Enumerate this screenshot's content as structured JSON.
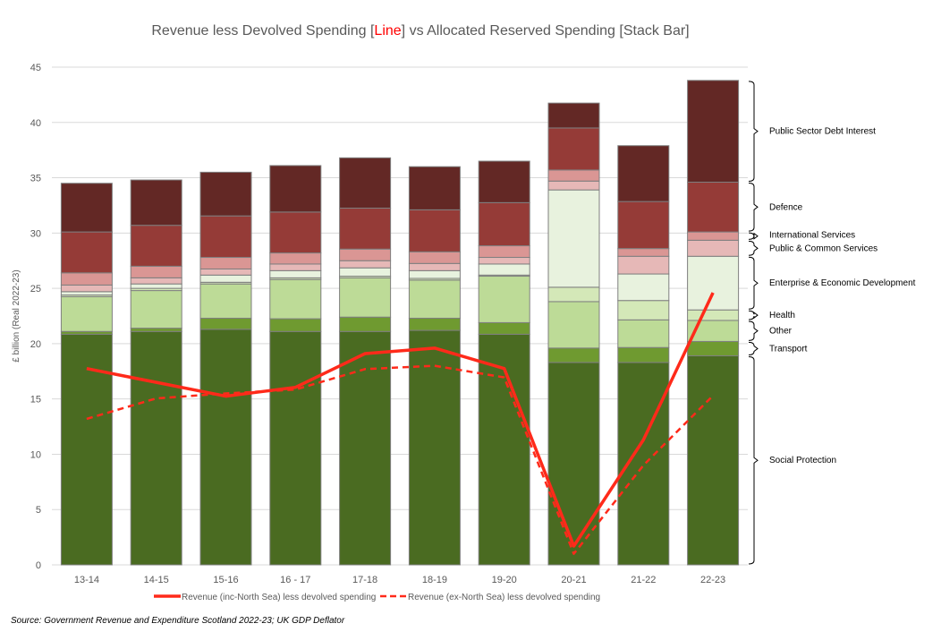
{
  "chart_data": {
    "type": "bar",
    "stacked": true,
    "title_parts": [
      "Revenue less Devolved Spending [",
      "Line",
      "] vs Allocated Reserved Spending [Stack Bar]"
    ],
    "ylabel": "£ billion (Real 2022-23)",
    "xlabel": "",
    "ylim": [
      0,
      45
    ],
    "yticks": [
      0,
      5,
      10,
      15,
      20,
      25,
      30,
      35,
      40,
      45
    ],
    "grid": true,
    "categories": [
      "13-14",
      "14-15",
      "15-16",
      "16 - 17",
      "17-18",
      "18-19",
      "19-20",
      "20-21",
      "21-22",
      "22-23"
    ],
    "series": [
      {
        "name": "Social Protection",
        "color": "#4a6b21",
        "values": [
          20.85,
          21.1,
          21.3,
          21.1,
          21.1,
          21.2,
          20.85,
          18.3,
          18.3,
          18.9
        ]
      },
      {
        "name": "Transport",
        "color": "#6f9a30",
        "values": [
          0.25,
          0.3,
          1.0,
          1.15,
          1.3,
          1.1,
          1.05,
          1.3,
          1.35,
          1.3
        ]
      },
      {
        "name": "Other",
        "color": "#bddb97",
        "values": [
          3.15,
          3.4,
          3.1,
          3.55,
          3.55,
          3.45,
          4.2,
          4.2,
          2.5,
          1.9
        ]
      },
      {
        "name": "Health",
        "color": "#d4e8b8",
        "values": [
          0.15,
          0.2,
          0.15,
          0.15,
          0.15,
          0.15,
          0.1,
          1.3,
          1.75,
          0.95
        ]
      },
      {
        "name": "Enterprise & Economic Development",
        "color": "#e8f2de",
        "values": [
          0.3,
          0.4,
          0.65,
          0.65,
          0.75,
          0.7,
          1.0,
          8.8,
          2.4,
          4.85
        ]
      },
      {
        "name": "Public & Common Services",
        "color": "#e6b8b7",
        "values": [
          0.6,
          0.55,
          0.55,
          0.6,
          0.65,
          0.65,
          0.6,
          0.8,
          1.6,
          1.45
        ]
      },
      {
        "name": "International Services",
        "color": "#da9694",
        "values": [
          1.1,
          1.05,
          1.05,
          1.0,
          1.05,
          1.05,
          1.05,
          1.0,
          0.7,
          0.75
        ]
      },
      {
        "name": "Defence",
        "color": "#953b37",
        "values": [
          3.7,
          3.7,
          3.75,
          3.7,
          3.7,
          3.8,
          3.9,
          3.8,
          4.25,
          4.5
        ]
      },
      {
        "name": "Public Sector Debt Interest",
        "color": "#632825",
        "values": [
          4.4,
          4.1,
          3.95,
          4.2,
          4.55,
          3.9,
          3.75,
          2.25,
          5.05,
          9.2
        ]
      }
    ],
    "lines": [
      {
        "name": "Revenue (inc-North Sea) less devolved spending",
        "color": "#ff2a1a",
        "dashed": false,
        "values": [
          17.75,
          16.5,
          15.25,
          16.05,
          19.1,
          19.6,
          17.75,
          1.7,
          11.3,
          24.6
        ]
      },
      {
        "name": "Revenue (ex-North Sea) less devolved spending",
        "color": "#ff2a1a",
        "dashed": true,
        "values": [
          13.2,
          15.05,
          15.5,
          15.85,
          17.7,
          18.0,
          16.95,
          1.0,
          9.0,
          15.3
        ]
      }
    ],
    "legend_placement": "bottom",
    "segment_labels_placement": "right"
  },
  "source": "Source: Government Revenue and Expenditure Scotland 2022-23; UK GDP Deflator"
}
